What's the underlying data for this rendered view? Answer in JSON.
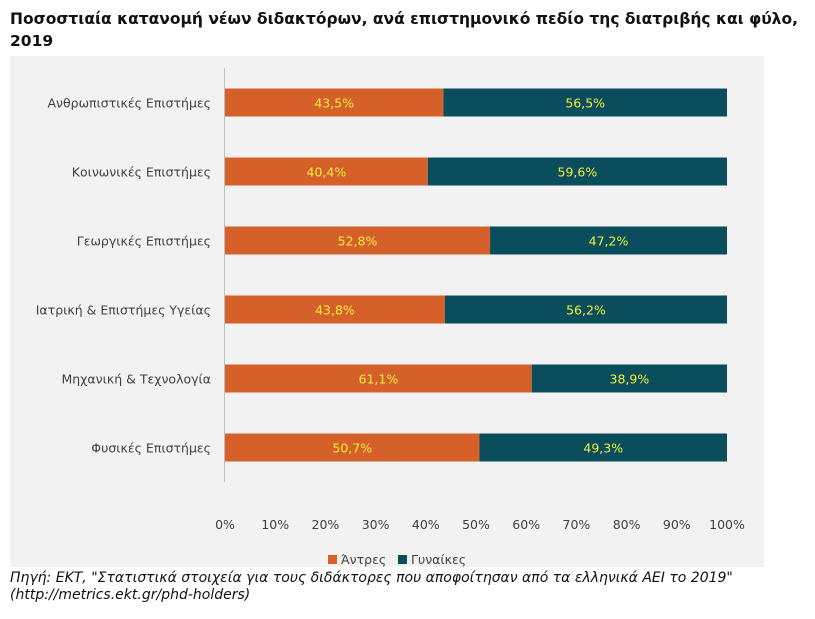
{
  "title": "Ποσοστιαία κατανομή νέων διδακτόρων, ανά επιστημονικό πεδίο της διατριβής και φύλο, 2019",
  "colors": {
    "men": "#d5602a",
    "women": "#0a4d5c",
    "data_label": "#f2ef3a",
    "panel_background": "#f2f2f2",
    "axis": "#bfbfbf"
  },
  "chart_data": {
    "type": "bar",
    "orientation": "horizontal",
    "stacked": "percent",
    "categories": [
      "Ανθρωπιστικές Επιστήμες",
      "Κοινωνικές Επιστήμες",
      "Γεωργικές Επιστήμες",
      "Ιατρική & Επιστήμες Υγείας",
      "Μηχανική & Τεχνολογία",
      "Φυσικές Επιστήμες"
    ],
    "series": [
      {
        "name": "Άντρες",
        "values": [
          43.5,
          40.4,
          52.8,
          43.8,
          61.1,
          50.7
        ],
        "labels": [
          "43,5%",
          "40,4%",
          "52,8%",
          "43,8%",
          "61,1%",
          "50,7%"
        ]
      },
      {
        "name": "Γυναίκες",
        "values": [
          56.5,
          59.6,
          47.2,
          56.2,
          38.9,
          49.3
        ],
        "labels": [
          "56,5%",
          "59,6%",
          "47,2%",
          "56,2%",
          "38,9%",
          "49,3%"
        ]
      }
    ],
    "xlim": [
      0,
      100
    ],
    "x_ticks": [
      "0%",
      "10%",
      "20%",
      "30%",
      "40%",
      "50%",
      "60%",
      "70%",
      "80%",
      "90%",
      "100%"
    ],
    "grid": false,
    "legend_position": "bottom"
  },
  "source": {
    "line1": "Πηγή: ΕΚΤ, \"Στατιστικά στοιχεία για τους διδάκτορες που αποφοίτησαν από τα ελληνικά ΑΕΙ το 2019\"",
    "line2": "(http://metrics.ekt.gr/phd-holders)"
  }
}
